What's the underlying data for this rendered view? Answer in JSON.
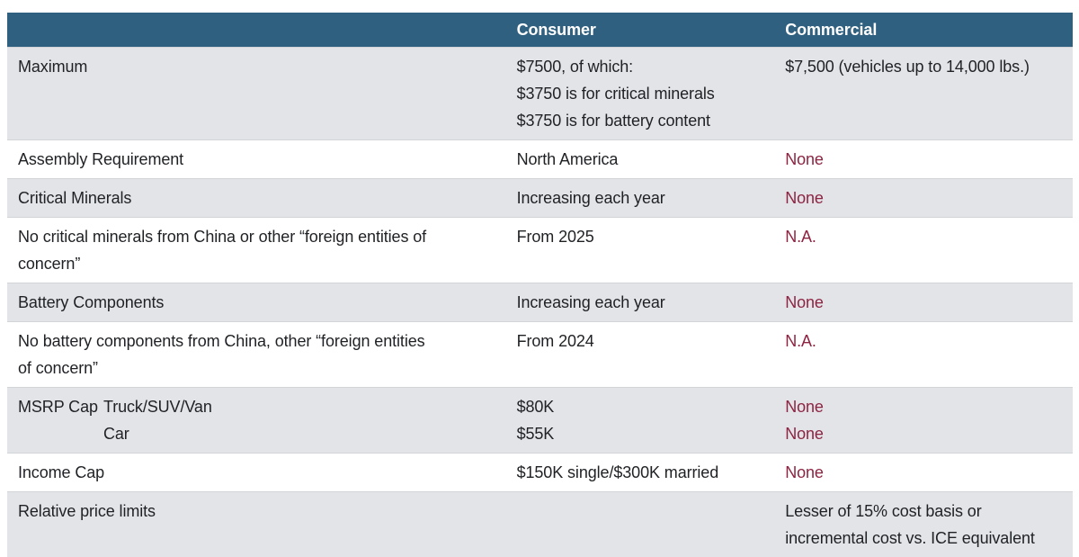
{
  "colors": {
    "header_bg": "#2f6080",
    "header_text": "#ffffff",
    "alt_row_bg": "#e2e4e7",
    "body_text": "#1f2124",
    "negative_text": "#8e2342"
  },
  "chart_data": {
    "type": "table",
    "columns": [
      "",
      "Consumer",
      "Commercial"
    ],
    "rows": [
      {
        "label": "Maximum",
        "consumer": "$7500, of which:\n$3750 is for critical minerals\n$3750 is for battery content",
        "commercial": "$7,500 (vehicles up to 14,000 lbs.)"
      },
      {
        "label": "Assembly Requirement",
        "consumer": "North America",
        "commercial": "None"
      },
      {
        "label": "Critical Minerals",
        "consumer": "Increasing each year",
        "commercial": "None"
      },
      {
        "label": "No critical minerals from China or other “foreign entities of\nconcern”",
        "consumer": "From 2025",
        "commercial": "N.A."
      },
      {
        "label": "Battery Components",
        "consumer": "Increasing each year",
        "commercial": "None"
      },
      {
        "label": "No battery components from China, other “foreign entities\nof concern”",
        "consumer": "From 2024",
        "commercial": "N.A."
      },
      {
        "label": "MSRP Cap",
        "sublabels": "Truck/SUV/Van\nCar",
        "consumer": "$80K\n$55K",
        "commercial": "None\nNone"
      },
      {
        "label": "Income Cap",
        "consumer": "$150K single/$300K married",
        "commercial": "None"
      },
      {
        "label": "Relative price limits",
        "consumer": "",
        "commercial": "Lesser of 15% cost basis or\nincremental cost vs. ICE equivalent"
      }
    ]
  }
}
